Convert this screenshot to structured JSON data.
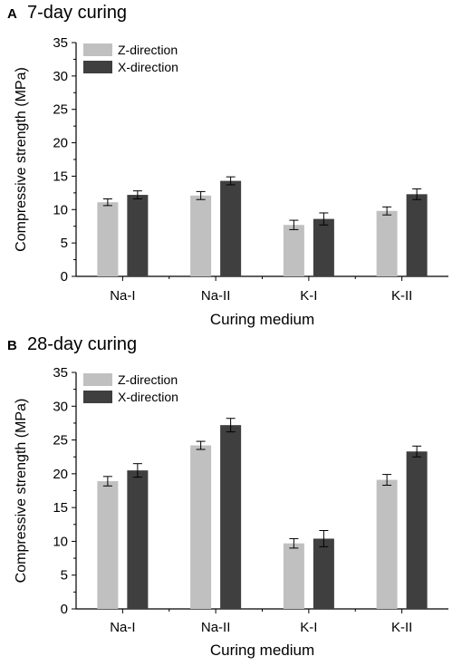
{
  "chart_data": [
    {
      "panel": "A",
      "type": "bar",
      "title": "7-day curing",
      "xlabel": "Curing medium",
      "ylabel": "Compressive strength (MPa)",
      "ylim": [
        0,
        35
      ],
      "yticks": [
        0,
        5,
        10,
        15,
        20,
        25,
        30,
        35
      ],
      "grid": false,
      "legend_position": "top-left",
      "categories": [
        "Na-I",
        "Na-II",
        "K-I",
        "K-II"
      ],
      "series": [
        {
          "name": "Z-direction",
          "color": "#c0c0c0",
          "values": [
            11.1,
            12.1,
            7.7,
            9.8
          ],
          "errors": [
            0.5,
            0.6,
            0.7,
            0.6
          ]
        },
        {
          "name": "X-direction",
          "color": "#3f3f3f",
          "values": [
            12.2,
            14.3,
            8.6,
            12.3
          ],
          "errors": [
            0.6,
            0.6,
            0.9,
            0.8
          ]
        }
      ]
    },
    {
      "panel": "B",
      "type": "bar",
      "title": "28-day curing",
      "xlabel": "Curing medium",
      "ylabel": "Compressive strength (MPa)",
      "ylim": [
        0,
        35
      ],
      "yticks": [
        0,
        5,
        10,
        15,
        20,
        25,
        30,
        35
      ],
      "grid": false,
      "legend_position": "top-left",
      "categories": [
        "Na-I",
        "Na-II",
        "K-I",
        "K-II"
      ],
      "series": [
        {
          "name": "Z-direction",
          "color": "#c0c0c0",
          "values": [
            18.9,
            24.2,
            9.7,
            19.1
          ],
          "errors": [
            0.7,
            0.6,
            0.7,
            0.8
          ]
        },
        {
          "name": "X-direction",
          "color": "#3f3f3f",
          "values": [
            20.5,
            27.2,
            10.4,
            23.3
          ],
          "errors": [
            1.0,
            1.0,
            1.2,
            0.8
          ]
        }
      ]
    }
  ]
}
